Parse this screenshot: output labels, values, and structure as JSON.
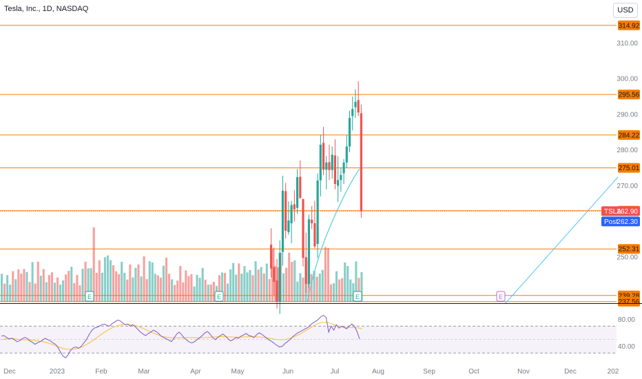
{
  "header": {
    "title": "Tesla, Inc., 1D, NASDAQ",
    "currency": "USD"
  },
  "colors": {
    "up": "#26a69a",
    "down": "#ef5350",
    "level": "#f57c00",
    "sma": "#4dd0e1",
    "rsi": "#7e57c2",
    "rsi_ma": "#fbc02d",
    "post": "#2962ff",
    "earnings_past": "#26a69a",
    "earnings_future": "#ba68c8"
  },
  "chart_data": [
    {
      "type": "candlestick",
      "symbol": "TSLA",
      "y_ticks": [
        "250.00",
        "260.00",
        "270.00",
        "280.00",
        "290.00",
        "300.00",
        "310.00"
      ],
      "ylim": [
        237.5,
        317
      ],
      "x_labels": [
        "Dec",
        "2023",
        "Feb",
        "Mar",
        "Apr",
        "May",
        "Jun",
        "Jul",
        "Aug",
        "Sep",
        "Oct",
        "Nov",
        "Dec",
        "202"
      ],
      "levels": [
        "314.92",
        "295.56",
        "284.22",
        "275.01",
        "263.01",
        "252.31",
        "239.28",
        "237.56"
      ],
      "last_price": {
        "label": "TSLA",
        "value": "262.90"
      },
      "post_price": {
        "label": "Post",
        "value": "262.30"
      },
      "candles": [
        [
          253.5,
          258.1,
          244.3,
          246.8
        ],
        [
          247.2,
          252.7,
          239.4,
          243.1
        ],
        [
          243.5,
          249.5,
          235.6,
          237.5
        ],
        [
          237.6,
          254.7,
          234.1,
          251.2
        ],
        [
          251.5,
          272.8,
          247.6,
          268.6
        ],
        [
          268.5,
          270.8,
          255.2,
          257.4
        ],
        [
          257.0,
          265.6,
          256.3,
          260.3
        ],
        [
          259.5,
          265.7,
          253.9,
          264.6
        ],
        [
          264.8,
          268.8,
          260.0,
          263.4
        ],
        [
          263.8,
          274.7,
          262.1,
          272.4
        ],
        [
          272.5,
          277.1,
          266.3,
          266.6
        ],
        [
          266.3,
          266.3,
          247.4,
          249.8
        ],
        [
          250.0,
          256.9,
          240.0,
          242.5
        ],
        [
          242.5,
          261.9,
          241.4,
          260.6
        ],
        [
          260.5,
          264.3,
          257.9,
          259.5
        ],
        [
          259.5,
          265.8,
          252.5,
          253.0
        ],
        [
          253.7,
          273.4,
          249.8,
          271.5
        ],
        [
          271.5,
          284.3,
          267.0,
          281.5
        ],
        [
          282.0,
          286.5,
          273.0,
          274.5
        ],
        [
          274.5,
          278.3,
          269.0,
          276.5
        ],
        [
          276.6,
          281.5,
          271.6,
          274.4
        ],
        [
          274.4,
          281.0,
          272.0,
          278.7
        ],
        [
          278.5,
          283.0,
          269.0,
          270.5
        ],
        [
          270.0,
          278.3,
          265.5,
          271.6
        ],
        [
          271.6,
          275.0,
          268.3,
          273.0
        ],
        [
          273.5,
          277.5,
          270.5,
          276.5
        ],
        [
          276.5,
          284.3,
          275.0,
          281.0
        ],
        [
          281.0,
          291.0,
          279.4,
          289.0
        ],
        [
          289.5,
          295.0,
          285.5,
          291.5
        ],
        [
          292.0,
          297.0,
          289.0,
          293.5
        ],
        [
          294.0,
          299.3,
          289.5,
          290.5
        ],
        [
          290.3,
          292.7,
          261.0,
          262.9
        ]
      ],
      "sma_x": [
        14,
        24,
        31,
        40
      ],
      "sma_y": [
        249.8,
        264.8,
        271.3,
        276.8
      ],
      "rsi": {
        "ylim": [
          20,
          100
        ],
        "y_ticks": [
          "80.00",
          "40.00"
        ],
        "bands": [
          70,
          30
        ],
        "mid": 50,
        "rsi_values": [
          55,
          56,
          53,
          51,
          52,
          50,
          47,
          48,
          51,
          53,
          52,
          48,
          46,
          43,
          45,
          47,
          49,
          52,
          50,
          48,
          45,
          43,
          38,
          31,
          25,
          23,
          28,
          35,
          38,
          39,
          37,
          40,
          45,
          50,
          57,
          63,
          67,
          68,
          70,
          72,
          73,
          71,
          70,
          74,
          76,
          79,
          78,
          75,
          72,
          73,
          70,
          72,
          69,
          65,
          61,
          58,
          56,
          59,
          61,
          64,
          62,
          59,
          55,
          53,
          51,
          49,
          47,
          52,
          58,
          61,
          57,
          52,
          49,
          46,
          45,
          47,
          50,
          53,
          56,
          60,
          62,
          58,
          53,
          50,
          53,
          56,
          58,
          55,
          51,
          48,
          50,
          53,
          52,
          55,
          57,
          59,
          56,
          55,
          53,
          57,
          60,
          58,
          55,
          52,
          49,
          47,
          44,
          41,
          39,
          40,
          44,
          47,
          50,
          54,
          57,
          60,
          62,
          64,
          66,
          68,
          72,
          75,
          77,
          80,
          84,
          86,
          83,
          61,
          70,
          64,
          72,
          67,
          70,
          68,
          66,
          70,
          73,
          70,
          62,
          51
        ],
        "ma_values": [
          50,
          50.5,
          51,
          51.3,
          51.4,
          51.2,
          50.7,
          50.2,
          49.8,
          49.6,
          49.5,
          49.3,
          49.0,
          48.6,
          48.1,
          47.5,
          46.8,
          46.0,
          45.0,
          43.8,
          42.4,
          40.9,
          39.4,
          38.0,
          36.8,
          35.9,
          35.4,
          35.3,
          35.6,
          36.3,
          37.4,
          38.8,
          40.5,
          42.5,
          44.8,
          47.3,
          50.0,
          52.8,
          55.6,
          58.3,
          60.9,
          63.3,
          65.5,
          67.4,
          69.0,
          70.4,
          71.5,
          72.2,
          72.6,
          72.6,
          72.3,
          71.7,
          70.8,
          69.6,
          68.2,
          66.6,
          64.9,
          63.1,
          61.3,
          59.6,
          58.0,
          56.6,
          55.4,
          54.4,
          53.6,
          53.0,
          52.7,
          52.5,
          52.5,
          52.6,
          52.8,
          52.9,
          53.0,
          53.0,
          52.9,
          52.8,
          52.7,
          52.7,
          52.8,
          52.9,
          53.1,
          53.4,
          53.7,
          54.0,
          54.2,
          54.3,
          54.3,
          54.2,
          54.0,
          53.8,
          53.6,
          53.5,
          53.5,
          53.6,
          53.8,
          54.0,
          54.1,
          54.1,
          54.0,
          53.9,
          53.7,
          53.4,
          53.0,
          52.5,
          51.9,
          51.2,
          50.6,
          50.1,
          49.8,
          49.8,
          50.1,
          50.8,
          51.8,
          53.1,
          54.7,
          56.5,
          58.5,
          60.7,
          63.0,
          65.4,
          67.8,
          70.1,
          72.2,
          73.9,
          75.1,
          75.6,
          75.4,
          74.7,
          73.6,
          72.4,
          71.1,
          69.9,
          68.9,
          68.3,
          68.0,
          67.9,
          67.9,
          67.8,
          67.5,
          66.9,
          65.8
        ]
      }
    }
  ],
  "earnings": {
    "past_label": "E",
    "future_label": "E"
  }
}
